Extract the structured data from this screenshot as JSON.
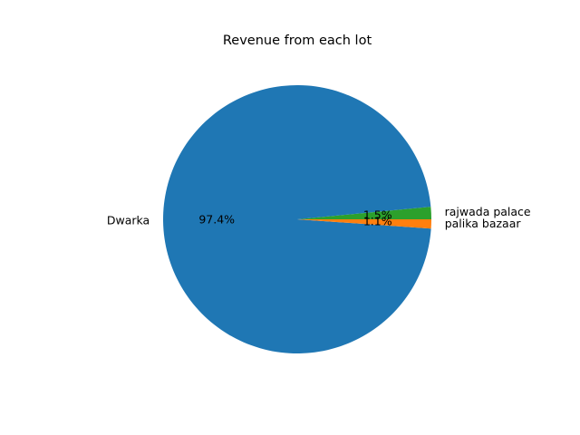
{
  "chart_data": {
    "type": "pie",
    "title": "Revenue from each lot",
    "start_angle_deg": 0,
    "counterclock": true,
    "slices": [
      {
        "label": "rajwada palace",
        "percent": 1.5,
        "percent_label": "1.5%",
        "color": "#2ca02c"
      },
      {
        "label": "Dwarka",
        "percent": 97.4,
        "percent_label": "97.4%",
        "color": "#1f77b4"
      },
      {
        "label": "palika bazaar",
        "percent": 1.1,
        "percent_label": "1.1%",
        "color": "#ff7f0e"
      }
    ]
  }
}
